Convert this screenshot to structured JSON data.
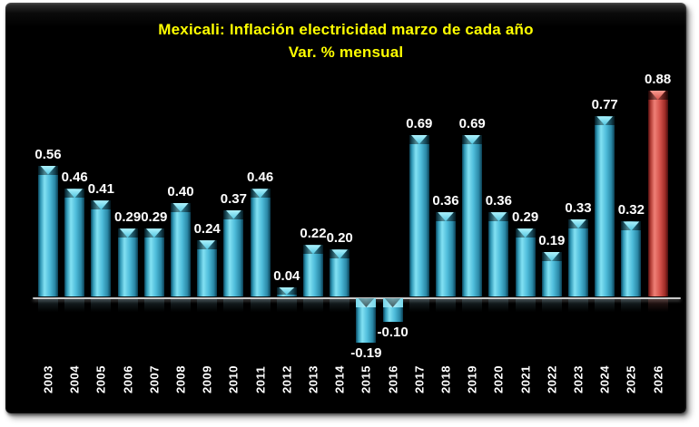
{
  "chart_data": {
    "type": "bar",
    "title": "Mexicali: Inflación electricidad marzo de cada año",
    "subtitle": "Var. % mensual",
    "categories": [
      "2003",
      "2004",
      "2005",
      "2006",
      "2007",
      "2008",
      "2009",
      "2010",
      "2011",
      "2012",
      "2013",
      "2014",
      "2015",
      "2016",
      "2017",
      "2018",
      "2019",
      "2020",
      "2021",
      "2022",
      "2023",
      "2024",
      "2025",
      "2026"
    ],
    "values": [
      0.56,
      0.46,
      0.41,
      0.29,
      0.29,
      0.4,
      0.24,
      0.37,
      0.46,
      0.04,
      0.22,
      0.2,
      -0.19,
      -0.1,
      0.69,
      0.36,
      0.69,
      0.36,
      0.29,
      0.19,
      0.33,
      0.77,
      0.32,
      0.88
    ],
    "value_labels": [
      "0.56",
      "0.46",
      "0.41",
      "0.29",
      "0.29",
      "0.40",
      "0.24",
      "0.37",
      "0.46",
      "0.04",
      "0.22",
      "0.20",
      "-0.19",
      "-0.10",
      "0.69",
      "0.36",
      "0.69",
      "0.36",
      "0.29",
      "0.19",
      "0.33",
      "0.77",
      "0.32",
      "0.88"
    ],
    "ylim": [
      -0.25,
      0.95
    ],
    "grid": false,
    "legend": false,
    "data_labels": true,
    "highlight_index": 23
  },
  "colors": {
    "page_background": "#ffffff",
    "panel_background": "#000000",
    "title_text": "#ffff00",
    "bar_series": "#3fb4d6",
    "bar_highlight": "#d6544d",
    "value_label_text": "#ffffff",
    "tick_label_text": "#ffffff",
    "axis_line": "#c9c9c9"
  }
}
